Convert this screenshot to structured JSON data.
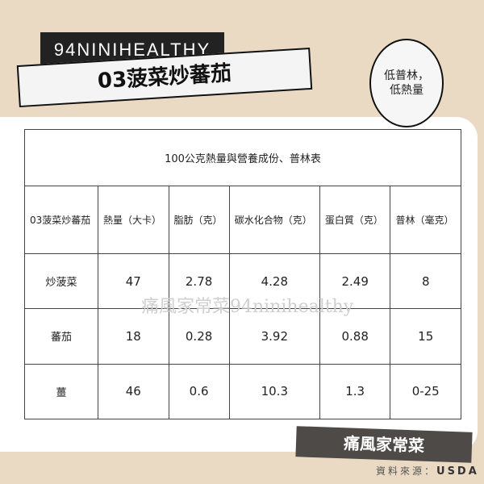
{
  "brand": "94NINIHEALTHY",
  "title": "03菠菜炒蕃茄",
  "badge": [
    "低普林，",
    "低熱量"
  ],
  "table": {
    "caption": "100公克熱量與營養成份、普林表",
    "headers": [
      "03菠菜炒蕃茄",
      "熱量（大卡）",
      "脂肪（克）",
      "碳水化合物（克）",
      "蛋白質（克）",
      "普林（毫克）"
    ],
    "rows": [
      [
        "炒菠菜",
        "47",
        "2.78",
        "4.28",
        "2.49",
        "8"
      ],
      [
        "蕃茄",
        "18",
        "0.28",
        "3.92",
        "0.88",
        "15"
      ],
      [
        "薑",
        "46",
        "0.6",
        "10.3",
        "1.3",
        "0-25"
      ]
    ]
  },
  "watermark": "痛風家常菜94ninihealthy",
  "footer": "痛風家常菜",
  "source_label": "資料來源：",
  "source_value": "USDA",
  "colors": {
    "background": "#ead9c3",
    "card": "#ffffff",
    "footer": "#4d4a48"
  }
}
